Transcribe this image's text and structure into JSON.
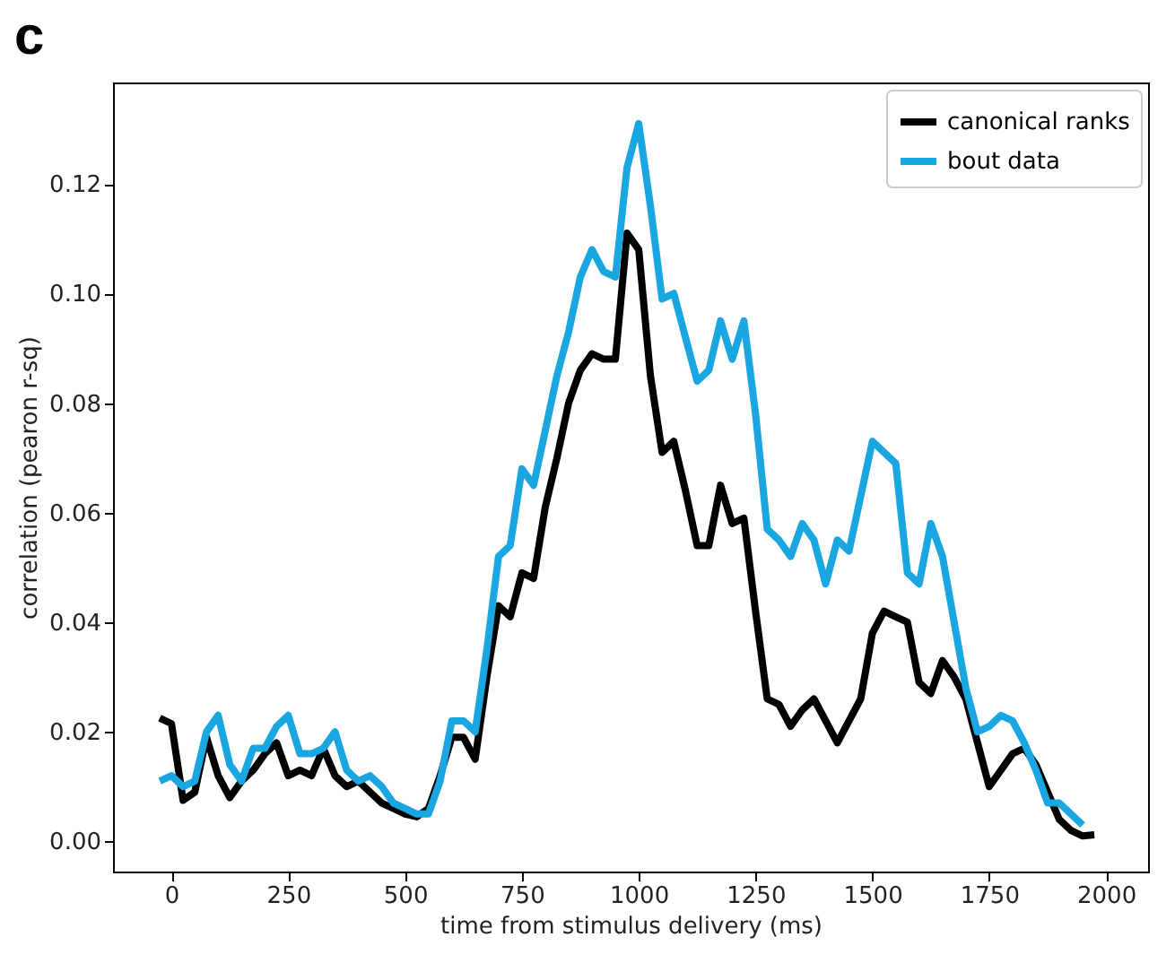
{
  "chart_data": {
    "type": "line",
    "title": "c",
    "xlabel": "time from stimulus delivery (ms)",
    "ylabel": "correlation (pearon r-sq)",
    "x": [
      -25,
      0,
      25,
      50,
      75,
      100,
      125,
      150,
      175,
      200,
      225,
      250,
      275,
      300,
      325,
      350,
      375,
      400,
      425,
      450,
      475,
      500,
      525,
      550,
      575,
      600,
      625,
      650,
      675,
      700,
      725,
      750,
      775,
      800,
      825,
      850,
      875,
      900,
      925,
      950,
      975,
      1000,
      1025,
      1050,
      1075,
      1100,
      1125,
      1150,
      1175,
      1200,
      1225,
      1250,
      1275,
      1300,
      1325,
      1350,
      1375,
      1400,
      1425,
      1450,
      1475,
      1500,
      1525,
      1550,
      1575,
      1600,
      1625,
      1650,
      1675,
      1700,
      1725,
      1750,
      1775,
      1800,
      1825,
      1850,
      1875,
      1900,
      1925,
      1950,
      1975
    ],
    "series": [
      {
        "name": "canonical ranks",
        "color": "#000000",
        "values": [
          0.0225,
          0.0215,
          0.0075,
          0.009,
          0.019,
          0.012,
          0.008,
          0.011,
          0.013,
          0.016,
          0.018,
          0.012,
          0.013,
          0.012,
          0.017,
          0.012,
          0.01,
          0.011,
          0.009,
          0.007,
          0.006,
          0.005,
          0.0045,
          0.006,
          0.012,
          0.019,
          0.019,
          0.015,
          0.03,
          0.043,
          0.041,
          0.049,
          0.048,
          0.061,
          0.07,
          0.08,
          0.086,
          0.089,
          0.088,
          0.088,
          0.111,
          0.108,
          0.085,
          0.071,
          0.073,
          0.064,
          0.054,
          0.054,
          0.065,
          0.058,
          0.059,
          0.042,
          0.026,
          0.025,
          0.021,
          0.024,
          0.026,
          0.022,
          0.018,
          0.022,
          0.026,
          0.038,
          0.042,
          0.041,
          0.04,
          0.029,
          0.027,
          0.033,
          0.03,
          0.026,
          0.018,
          0.01,
          0.013,
          0.016,
          0.017,
          0.014,
          0.009,
          0.004,
          0.002,
          0.001,
          0.0012
        ]
      },
      {
        "name": "bout data",
        "color": "#1aa7e1",
        "values": [
          0.011,
          0.012,
          0.01,
          0.011,
          0.02,
          0.023,
          0.014,
          0.011,
          0.017,
          0.017,
          0.021,
          0.023,
          0.016,
          0.016,
          0.017,
          0.02,
          0.013,
          0.011,
          0.012,
          0.01,
          0.007,
          0.006,
          0.005,
          0.005,
          0.011,
          0.022,
          0.022,
          0.02,
          0.035,
          0.052,
          0.054,
          0.068,
          0.065,
          0.075,
          0.085,
          0.093,
          0.103,
          0.108,
          0.104,
          0.103,
          0.123,
          0.131,
          0.116,
          0.099,
          0.1,
          0.092,
          0.084,
          0.086,
          0.095,
          0.088,
          0.095,
          0.078,
          0.057,
          0.055,
          0.052,
          0.058,
          0.055,
          0.047,
          0.055,
          0.053,
          0.063,
          0.073,
          0.071,
          0.069,
          0.049,
          0.047,
          0.058,
          0.052,
          0.04,
          0.028,
          0.02,
          0.021,
          0.023,
          0.022,
          0.018,
          0.013,
          0.007,
          0.007,
          0.005,
          0.003,
          null
        ]
      }
    ],
    "xlim": [
      -125,
      2090
    ],
    "xticks": [
      0,
      250,
      500,
      750,
      1000,
      1250,
      1500,
      1750,
      2000
    ],
    "ylim": [
      -0.0055,
      0.1385
    ],
    "yticks": [
      {
        "value": 0,
        "label": "0.00"
      },
      {
        "value": 0.02,
        "label": "0.02"
      },
      {
        "value": 0.04,
        "label": "0.04"
      },
      {
        "value": 0.06,
        "label": "0.06"
      },
      {
        "value": 0.08,
        "label": "0.08"
      },
      {
        "value": 0.1,
        "label": "0.10"
      },
      {
        "value": 0.12,
        "label": "0.12"
      }
    ],
    "legend": "top right",
    "line_style": "solid"
  }
}
